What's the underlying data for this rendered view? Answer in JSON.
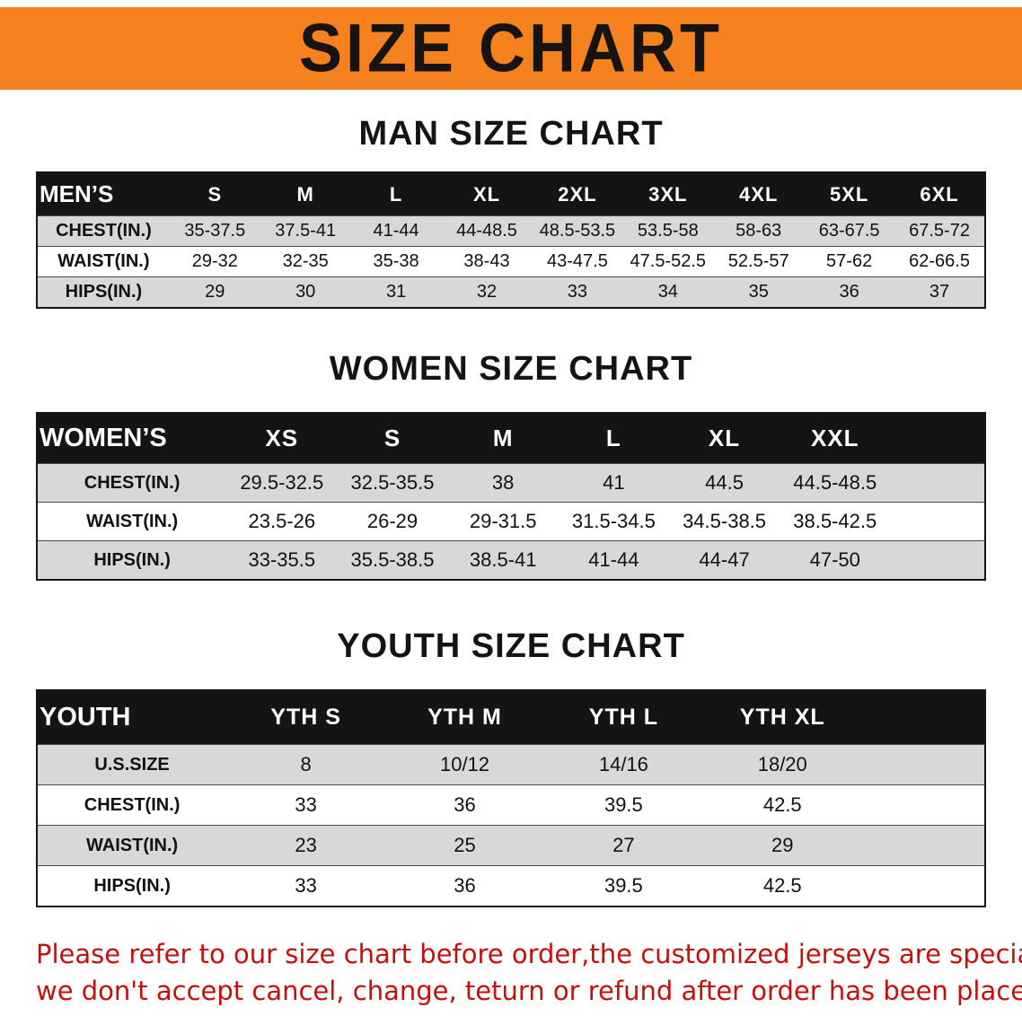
{
  "banner": {
    "title": "SIZE CHART"
  },
  "colors": {
    "banner_bg": "#f5821f",
    "header_bg": "#141414",
    "row_stripe": "#d8d8d8",
    "disclaimer_text": "#c40f0f"
  },
  "sections": [
    {
      "heading": "MAN SIZE CHART",
      "table": {
        "header": [
          "MEN’S",
          "S",
          "M",
          "L",
          "XL",
          "2XL",
          "3XL",
          "4XL",
          "5XL",
          "6XL"
        ],
        "rows": [
          [
            "CHEST(IN.)",
            "35-37.5",
            "37.5-41",
            "41-44",
            "44-48.5",
            "48.5-53.5",
            "53.5-58",
            "58-63",
            "63-67.5",
            "67.5-72"
          ],
          [
            "WAIST(IN.)",
            "29-32",
            "32-35",
            "35-38",
            "38-43",
            "43-47.5",
            "47.5-52.5",
            "52.5-57",
            "57-62",
            "62-66.5"
          ],
          [
            "HIPS(IN.)",
            "29",
            "30",
            "31",
            "32",
            "33",
            "34",
            "35",
            "36",
            "37"
          ]
        ]
      }
    },
    {
      "heading": "WOMEN SIZE CHART",
      "table": {
        "header": [
          "WOMEN’S",
          "XS",
          "S",
          "M",
          "L",
          "XL",
          "XXL"
        ],
        "rows": [
          [
            "CHEST(IN.)",
            "29.5-32.5",
            "32.5-35.5",
            "38",
            "41",
            "44.5",
            "44.5-48.5"
          ],
          [
            "WAIST(IN.)",
            "23.5-26",
            "26-29",
            "29-31.5",
            "31.5-34.5",
            "34.5-38.5",
            "38.5-42.5"
          ],
          [
            "HIPS(IN.)",
            "33-35.5",
            "35.5-38.5",
            "38.5-41",
            "41-44",
            "44-47",
            "47-50"
          ]
        ]
      }
    },
    {
      "heading": "YOUTH SIZE CHART",
      "table": {
        "header": [
          "YOUTH",
          "YTH S",
          "YTH M",
          "YTH L",
          "YTH XL"
        ],
        "rows": [
          [
            "U.S.SIZE",
            "8",
            "10/12",
            "14/16",
            "18/20"
          ],
          [
            "CHEST(IN.)",
            "33",
            "36",
            "39.5",
            "42.5"
          ],
          [
            "WAIST(IN.)",
            "23",
            "25",
            "27",
            "29"
          ],
          [
            "HIPS(IN.)",
            "33",
            "36",
            "39.5",
            "42.5"
          ]
        ]
      }
    }
  ],
  "disclaimer": {
    "lines": [
      "Please refer to our size chart before order,the customized jerseys are special products,",
      "we don't accept cancel, change, teturn or refund after order has been placed!"
    ]
  }
}
